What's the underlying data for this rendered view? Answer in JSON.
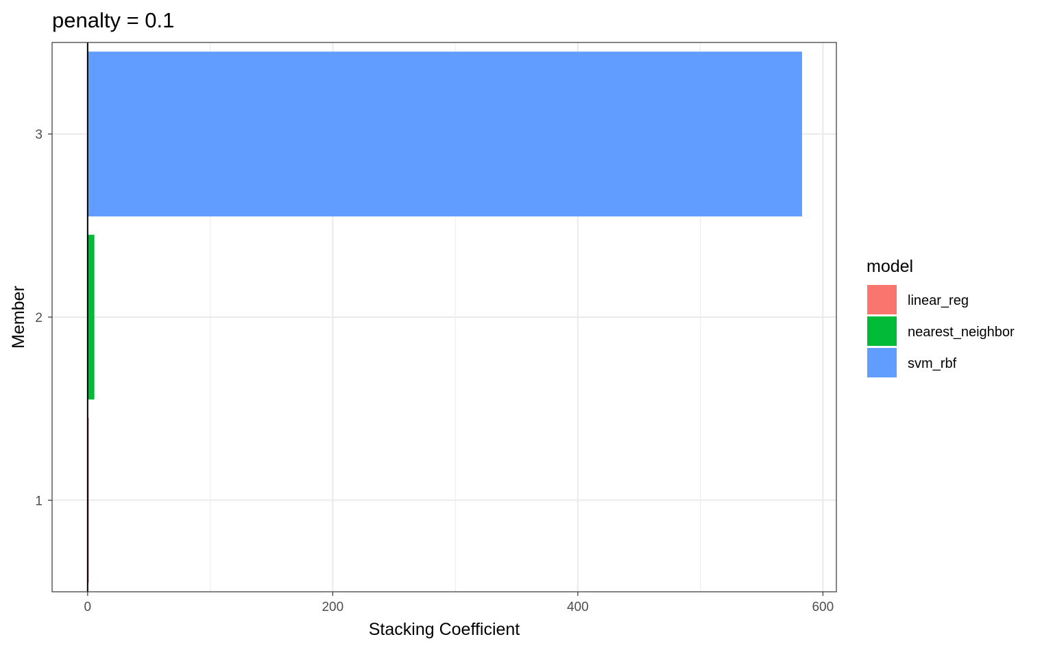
{
  "chart_data": {
    "type": "bar",
    "orientation": "horizontal",
    "title": "penalty = 0.1",
    "xlabel": "Stacking Coefficient",
    "ylabel": "Member",
    "categories": [
      "1",
      "2",
      "3"
    ],
    "values": [
      1,
      5.5,
      583
    ],
    "bar_models": [
      "linear_reg",
      "nearest_neighbor",
      "svm_rbf"
    ],
    "xlim": [
      -29,
      611
    ],
    "x_ticks": [
      0,
      200,
      400,
      600
    ],
    "x_tick_labels": [
      "0",
      "200",
      "400",
      "600"
    ],
    "x_minor_ticks": [
      100,
      300,
      500
    ],
    "zero_line": 0,
    "grid": true,
    "legend": {
      "title": "model",
      "placement": "right",
      "items": [
        {
          "label": "linear_reg",
          "color": "#F8766D"
        },
        {
          "label": "nearest_neighbor",
          "color": "#00BA38"
        },
        {
          "label": "svm_rbf",
          "color": "#619CFF"
        }
      ]
    }
  }
}
